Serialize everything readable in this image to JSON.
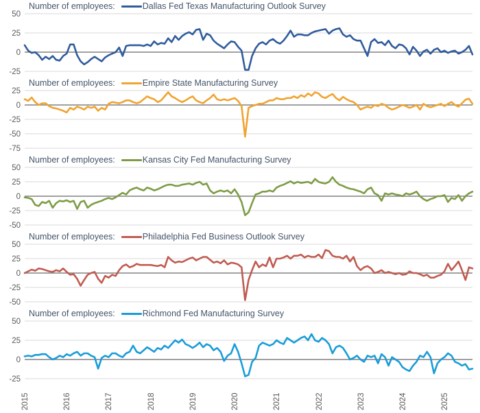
{
  "figure": {
    "background": "#ffffff",
    "legend_prefix": "Number of employees:",
    "text_color": "#44546a",
    "tick_color": "#595959",
    "gridline_color": "#d9d9d9",
    "zeroline_color": "#808080"
  },
  "x_axis": {
    "labels": [
      "2015",
      "2016",
      "2017",
      "2018",
      "2019",
      "2020",
      "2021",
      "2022",
      "2023",
      "2024",
      "2025"
    ],
    "frequency": "monthly",
    "range": "Jan 2015 - Sep 2025"
  },
  "chart_data": [
    {
      "type": "line",
      "id": "dallas",
      "title": "Dallas Fed Texas Manufacturing Outlook Survey",
      "prefix_label": "Number of employees:",
      "color": "#2f5b9c",
      "ylim": [
        -25,
        50
      ],
      "yticks": [
        50,
        25,
        0,
        -25
      ],
      "values": [
        9,
        2,
        -1,
        0,
        -4,
        -10,
        -6,
        -9,
        -5,
        -10,
        -11,
        -5,
        -2,
        10,
        10,
        -4,
        -12,
        -16,
        -13,
        -9,
        -6,
        -9,
        -12,
        -7,
        -4,
        -2,
        0,
        6,
        -5,
        8,
        9,
        9,
        9,
        9,
        8,
        10,
        8,
        14,
        10,
        12,
        11,
        18,
        13,
        21,
        16,
        21,
        24,
        26,
        23,
        29,
        30,
        16,
        24,
        22,
        15,
        11,
        8,
        5,
        10,
        14,
        13,
        7,
        2,
        -23,
        -23,
        -5,
        5,
        11,
        13,
        10,
        15,
        17,
        13,
        11,
        15,
        21,
        28,
        20,
        23,
        23,
        22,
        22,
        25,
        27,
        28,
        29,
        30,
        24,
        28,
        30,
        31,
        23,
        20,
        22,
        17,
        15,
        15,
        5,
        -5,
        13,
        17,
        12,
        13,
        9,
        15,
        8,
        5,
        10,
        9,
        5,
        -3,
        7,
        2,
        -5,
        1,
        3,
        -2,
        3,
        5,
        0,
        2,
        -1,
        1,
        2,
        -2,
        0,
        3,
        8,
        -3
      ]
    },
    {
      "type": "line",
      "id": "empire",
      "title": "Empire State Manufacturing Survey",
      "prefix_label": "Number of employees:",
      "color": "#f0a32f",
      "ylim": [
        -75,
        25
      ],
      "yticks": [
        25,
        0,
        -25,
        -50,
        -75
      ],
      "values": [
        10,
        7,
        13,
        5,
        0,
        3,
        3,
        -2,
        -5,
        -6,
        -8,
        -10,
        -13,
        -5,
        -8,
        -3,
        -5,
        -8,
        -3,
        -5,
        -3,
        -10,
        -5,
        -8,
        2,
        5,
        4,
        3,
        5,
        8,
        8,
        5,
        3,
        5,
        10,
        15,
        12,
        10,
        5,
        8,
        15,
        22,
        15,
        12,
        8,
        5,
        8,
        12,
        15,
        8,
        5,
        3,
        8,
        12,
        18,
        10,
        8,
        10,
        8,
        10,
        12,
        7,
        -2,
        -55,
        -5,
        -2,
        0,
        2,
        2,
        5,
        8,
        8,
        12,
        10,
        10,
        12,
        12,
        15,
        12,
        17,
        14,
        20,
        16,
        22,
        20,
        14,
        12,
        16,
        19,
        12,
        8,
        14,
        10,
        7,
        5,
        0,
        -8,
        -5,
        -3,
        -5,
        0,
        -2,
        2,
        0,
        -5,
        -8,
        -6,
        -3,
        0,
        -2,
        -5,
        -3,
        0,
        -8,
        2,
        -2,
        -4,
        -2,
        0,
        2,
        -2,
        2,
        5,
        0,
        -3,
        3,
        9,
        11,
        2
      ]
    },
    {
      "type": "line",
      "id": "kansas",
      "title": "Kansas City Fed Manufacturing Survey",
      "prefix_label": "Number of employees:",
      "color": "#7d9c45",
      "ylim": [
        -50,
        50
      ],
      "yticks": [
        50,
        25,
        0,
        -25,
        -50
      ],
      "values": [
        -2,
        -3,
        -5,
        -15,
        -17,
        -10,
        -12,
        -8,
        -20,
        -12,
        -8,
        -9,
        -7,
        -10,
        -8,
        -22,
        -10,
        -8,
        -20,
        -15,
        -12,
        -10,
        -8,
        -5,
        -3,
        -5,
        -2,
        2,
        6,
        3,
        10,
        13,
        15,
        12,
        10,
        15,
        13,
        10,
        12,
        15,
        18,
        20,
        20,
        18,
        18,
        20,
        21,
        22,
        20,
        23,
        25,
        20,
        22,
        10,
        5,
        8,
        10,
        8,
        10,
        5,
        12,
        3,
        -10,
        -33,
        -28,
        -12,
        3,
        5,
        8,
        8,
        10,
        8,
        15,
        18,
        20,
        23,
        26,
        22,
        25,
        23,
        24,
        25,
        22,
        30,
        25,
        23,
        22,
        25,
        33,
        25,
        20,
        18,
        15,
        13,
        12,
        10,
        8,
        5,
        12,
        15,
        5,
        2,
        -8,
        5,
        3,
        5,
        3,
        2,
        0,
        5,
        3,
        5,
        8,
        0,
        -5,
        -8,
        -5,
        -3,
        0,
        0,
        2,
        -10,
        -3,
        -5,
        2,
        -8,
        0,
        5,
        8
      ]
    },
    {
      "type": "line",
      "id": "philadelphia",
      "title": "Philadelphia Fed Business Outlook Survey",
      "prefix_label": "Number of employees:",
      "color": "#c05b50",
      "ylim": [
        -50,
        50
      ],
      "yticks": [
        50,
        25,
        0,
        -25,
        -50
      ],
      "values": [
        0,
        3,
        6,
        4,
        8,
        7,
        5,
        3,
        2,
        5,
        3,
        8,
        2,
        -3,
        -2,
        -10,
        -22,
        -12,
        -3,
        0,
        2,
        -10,
        -17,
        -5,
        -8,
        -3,
        -5,
        5,
        12,
        15,
        10,
        12,
        16,
        14,
        14,
        14,
        14,
        13,
        12,
        14,
        10,
        28,
        22,
        18,
        20,
        19,
        22,
        25,
        27,
        22,
        25,
        28,
        28,
        23,
        18,
        20,
        17,
        22,
        15,
        18,
        17,
        15,
        10,
        -47,
        -12,
        5,
        20,
        10,
        15,
        12,
        27,
        10,
        25,
        25,
        27,
        30,
        25,
        30,
        30,
        32,
        27,
        30,
        28,
        28,
        32,
        26,
        40,
        38,
        30,
        28,
        28,
        25,
        30,
        20,
        28,
        12,
        5,
        10,
        12,
        8,
        0,
        2,
        5,
        0,
        2,
        0,
        -2,
        0,
        -3,
        -2,
        3,
        0,
        0,
        -2,
        -5,
        -3,
        -8,
        -8,
        -5,
        -3,
        3,
        16,
        5,
        12,
        20,
        5,
        -12,
        10,
        8
      ]
    },
    {
      "type": "line",
      "id": "richmond",
      "title": "Richmond Fed Manufacturing Survey",
      "prefix_label": "Number of employees:",
      "color": "#199cd8",
      "ylim": [
        -25,
        50
      ],
      "yticks": [
        50,
        25,
        0,
        -25
      ],
      "values": [
        4,
        5,
        4,
        6,
        6,
        7,
        7,
        3,
        0,
        2,
        5,
        3,
        7,
        5,
        8,
        10,
        5,
        8,
        8,
        5,
        3,
        -12,
        2,
        5,
        3,
        8,
        8,
        5,
        3,
        8,
        10,
        18,
        10,
        8,
        12,
        16,
        13,
        10,
        15,
        13,
        18,
        15,
        20,
        25,
        22,
        26,
        20,
        18,
        15,
        18,
        22,
        16,
        20,
        18,
        12,
        15,
        10,
        -2,
        5,
        8,
        20,
        10,
        -5,
        -22,
        -20,
        -3,
        2,
        18,
        22,
        20,
        18,
        20,
        25,
        22,
        20,
        28,
        25,
        22,
        25,
        28,
        30,
        25,
        33,
        25,
        23,
        28,
        25,
        20,
        8,
        16,
        18,
        15,
        8,
        0,
        2,
        5,
        0,
        -3,
        5,
        3,
        5,
        -5,
        7,
        3,
        -8,
        3,
        0,
        -3,
        -10,
        -13,
        -15,
        -8,
        -3,
        5,
        3,
        10,
        3,
        -18,
        -5,
        0,
        3,
        8,
        5,
        -3,
        -5,
        -8,
        -6,
        -13,
        -12
      ]
    }
  ]
}
